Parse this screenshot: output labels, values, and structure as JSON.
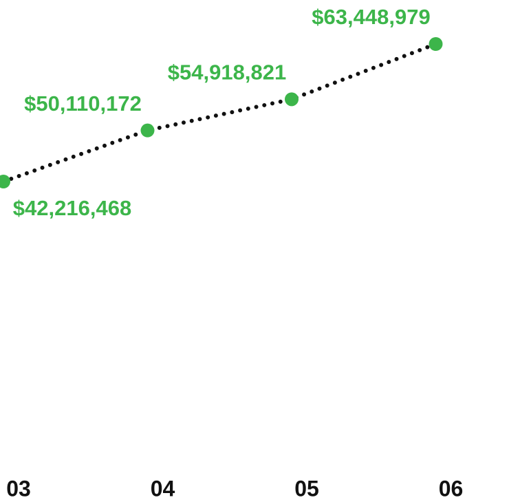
{
  "chart_data": {
    "type": "line",
    "categories": [
      "03",
      "04",
      "05",
      "06"
    ],
    "series": [
      {
        "color": "#3cb54a",
        "values": [
          42216468,
          50110172,
          54918821,
          63448979
        ],
        "value_labels": [
          "$42,216,468",
          "$50,110,172",
          "$54,918,821",
          "$63,448,979"
        ]
      }
    ]
  }
}
